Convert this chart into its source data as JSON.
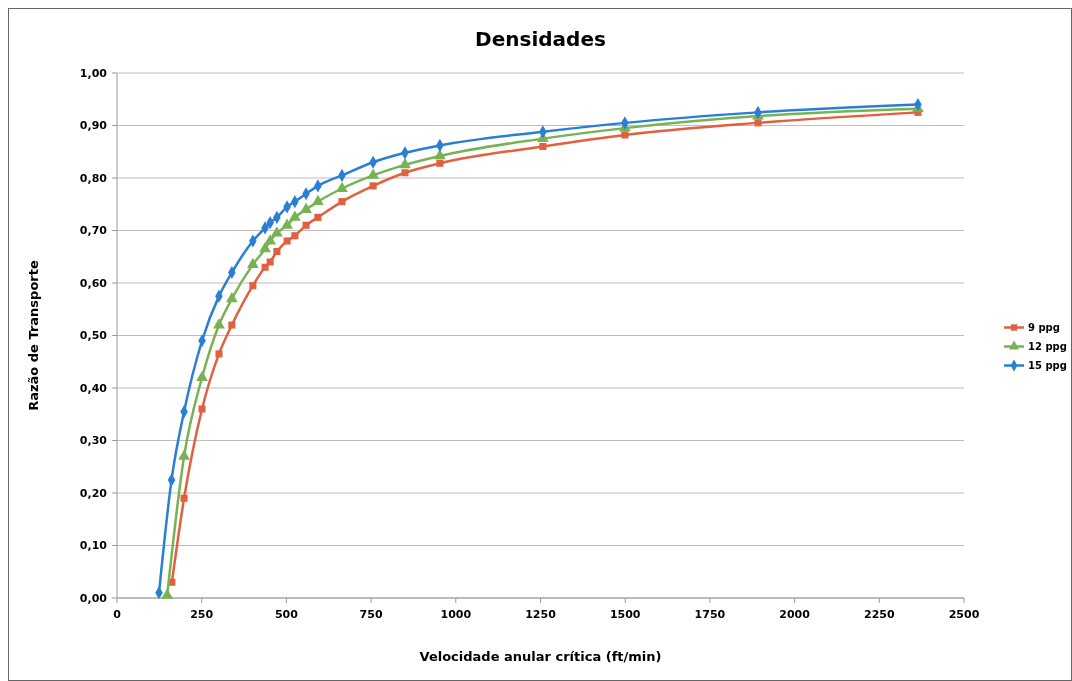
{
  "chart_data": {
    "type": "line",
    "title": "Densidades",
    "xlabel": "Velocidade anular crítica (ft/min)",
    "ylabel": "Razão de Transporte",
    "xlim": [
      0,
      2500
    ],
    "xticks": [
      0,
      250,
      500,
      750,
      1000,
      1250,
      1500,
      1750,
      2000,
      2250,
      2500
    ],
    "ylim": [
      0,
      1
    ],
    "yticks": [
      {
        "value": 0,
        "label": "0,00"
      },
      {
        "value": 0.1,
        "label": "0,10"
      },
      {
        "value": 0.2,
        "label": "0,20"
      },
      {
        "value": 0.3,
        "label": "0,30"
      },
      {
        "value": 0.4,
        "label": "0,40"
      },
      {
        "value": 0.5,
        "label": "0,50"
      },
      {
        "value": 0.6,
        "label": "0,60"
      },
      {
        "value": 0.7,
        "label": "0,70"
      },
      {
        "value": 0.8,
        "label": "0,80"
      },
      {
        "value": 0.9,
        "label": "0,90"
      },
      {
        "value": 1,
        "label": "1,00"
      }
    ],
    "grid": "y",
    "legend": "right",
    "line_style": "solid",
    "series": [
      {
        "name": "9 ppg",
        "color": "#e0603f",
        "marker": "square",
        "x": [
          162,
          198,
          251,
          301,
          339,
          401,
          437,
          452,
          472,
          502,
          525,
          558,
          593,
          664,
          756,
          850,
          953,
          1257,
          1499,
          1892,
          2364
        ],
        "values": [
          0.03,
          0.19,
          0.36,
          0.465,
          0.52,
          0.595,
          0.63,
          0.64,
          0.66,
          0.68,
          0.69,
          0.71,
          0.725,
          0.755,
          0.785,
          0.81,
          0.828,
          0.86,
          0.882,
          0.905,
          0.925
        ]
      },
      {
        "name": "12 ppg",
        "color": "#77b352",
        "marker": "triangle",
        "x": [
          148,
          198,
          251,
          301,
          339,
          401,
          437,
          452,
          472,
          502,
          525,
          558,
          593,
          664,
          756,
          850,
          953,
          1257,
          1499,
          1892,
          2364
        ],
        "values": [
          0.005,
          0.27,
          0.42,
          0.52,
          0.57,
          0.635,
          0.665,
          0.68,
          0.695,
          0.71,
          0.725,
          0.74,
          0.755,
          0.78,
          0.805,
          0.825,
          0.842,
          0.875,
          0.895,
          0.918,
          0.932
        ]
      },
      {
        "name": "15 ppg",
        "color": "#2a7fd4",
        "marker": "diamond",
        "x": [
          124,
          161,
          198,
          251,
          301,
          339,
          401,
          437,
          452,
          472,
          502,
          525,
          558,
          593,
          664,
          756,
          850,
          953,
          1257,
          1499,
          1892,
          2364
        ],
        "values": [
          0.01,
          0.225,
          0.355,
          0.49,
          0.575,
          0.62,
          0.68,
          0.705,
          0.715,
          0.725,
          0.745,
          0.755,
          0.77,
          0.785,
          0.805,
          0.83,
          0.848,
          0.862,
          0.888,
          0.905,
          0.925,
          0.94
        ]
      }
    ]
  }
}
